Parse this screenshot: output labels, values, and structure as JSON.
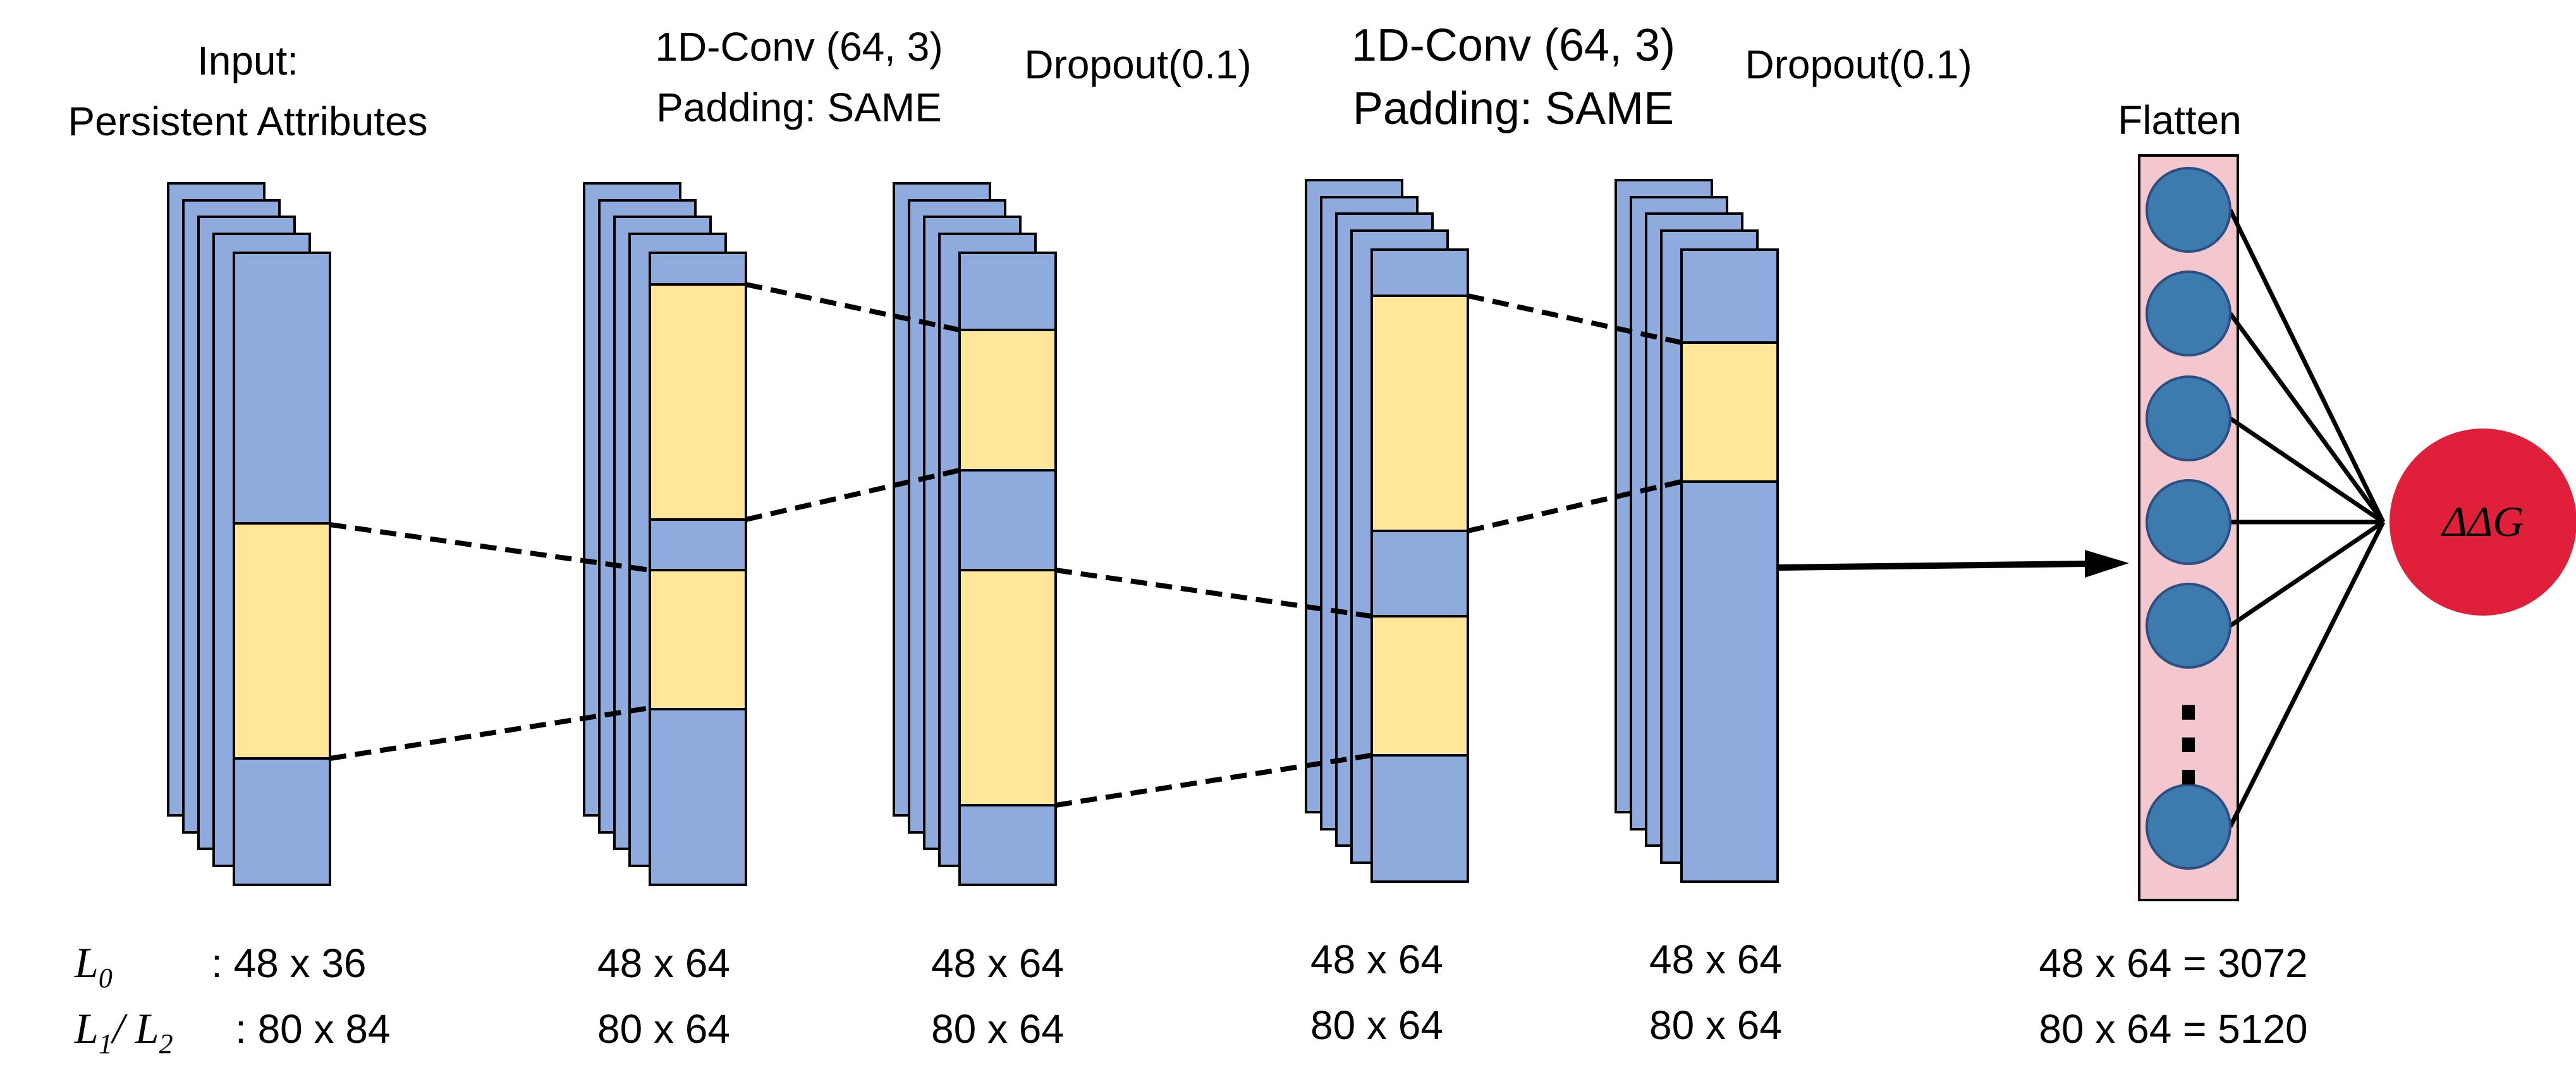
{
  "labels": {
    "input_line1": "Input:",
    "input_line2": "Persistent Attributes",
    "conv1_line1": "1D-Conv (64, 3)",
    "conv1_line2": "Padding: SAME",
    "dropout1": "Dropout(0.1)",
    "conv2_line1": "1D-Conv (64, 3)",
    "conv2_line2": "Padding: SAME",
    "dropout2": "Dropout(0.1)",
    "flatten": "Flatten",
    "output": "ΔΔG"
  },
  "dims": {
    "L0_symbol": "L",
    "L0_sub": "0",
    "L0_value": ": 48 x 36",
    "L12_symbol1": "L",
    "L12_sub1": "1",
    "L12_slash": "/ ",
    "L12_symbol2": "L",
    "L12_sub2": "2",
    "L12_value": ": 80 x 84",
    "conv1_a": "48 x 64",
    "conv1_b": "80 x 64",
    "drop1_a": "48 x 64",
    "drop1_b": "80 x 64",
    "conv2_a": "48 x 64",
    "conv2_b": "80 x 64",
    "drop2_a": "48 x 64",
    "drop2_b": "80 x 64",
    "flatten_a": "48 x 64 = 3072",
    "flatten_b": "80 x 64 = 5120"
  },
  "flatten_ellipsis": "⋮",
  "colors": {
    "feature_map": "#8faadc",
    "kernel_window": "#ffe699",
    "flatten_panel": "#f4c7cf",
    "neuron": "#3d7aad",
    "output_node": "#e0203a"
  }
}
